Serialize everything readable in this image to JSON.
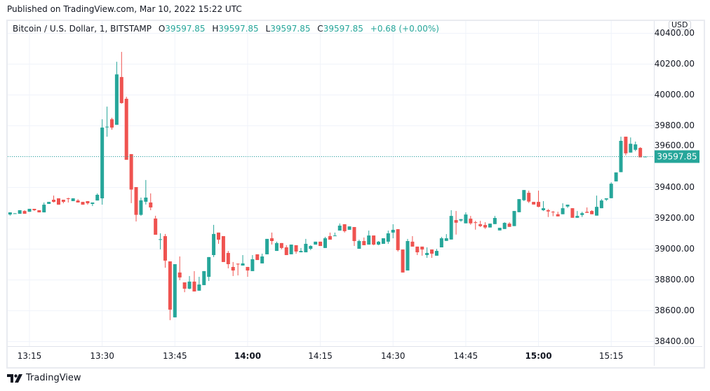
{
  "header": {
    "published": "Published on TradingView.com, Mar 10, 2022 15:22 UTC"
  },
  "legend": {
    "symbol": "Bitcoin / U.S. Dollar, 1, BITSTAMP",
    "open_label": "O",
    "open": "39597.85",
    "high_label": "H",
    "high": "39597.85",
    "low_label": "L",
    "low": "39597.85",
    "close_label": "C",
    "close": "39597.85",
    "change": "+0.68 (+0.00%)"
  },
  "currency_button": "USD",
  "footer": {
    "brand": "TradingView"
  },
  "colors": {
    "up": "#26a69a",
    "down": "#ef5350",
    "grid": "#f0f3fa",
    "text": "#131722"
  },
  "chart_data": {
    "type": "candlestick",
    "interval": "1 minute",
    "grid": true,
    "y_ticks": [
      "40400.00",
      "40200.00",
      "40000.00",
      "39800.00",
      "39600.00",
      "39400.00",
      "39200.00",
      "39000.00",
      "38800.00",
      "38600.00",
      "38400.00"
    ],
    "x_ticks": [
      {
        "label": "13:15",
        "bold": false
      },
      {
        "label": "13:30",
        "bold": false
      },
      {
        "label": "13:45",
        "bold": false
      },
      {
        "label": "14:00",
        "bold": true
      },
      {
        "label": "14:15",
        "bold": false
      },
      {
        "label": "14:30",
        "bold": false
      },
      {
        "label": "14:45",
        "bold": false
      },
      {
        "label": "15:00",
        "bold": true
      },
      {
        "label": "15:15",
        "bold": false
      }
    ],
    "last_price": "39597.85",
    "ohlc": [
      [
        39222,
        39236,
        39215,
        39236
      ],
      [
        39230,
        39231,
        39229,
        39230
      ],
      [
        39227,
        39250,
        39227,
        39250
      ],
      [
        39245,
        39250,
        39227,
        39227
      ],
      [
        39240,
        39259,
        39240,
        39259
      ],
      [
        39259,
        39259,
        39245,
        39250
      ],
      [
        39250,
        39250,
        39236,
        39236
      ],
      [
        39236,
        39300,
        39236,
        39286
      ],
      [
        39291,
        39304,
        39291,
        39304
      ],
      [
        39318,
        39345,
        39300,
        39304
      ],
      [
        39327,
        39327,
        39286,
        39286
      ],
      [
        39318,
        39318,
        39295,
        39304
      ],
      [
        39327,
        39331,
        39300,
        39325
      ],
      [
        39309,
        39327,
        39309,
        39327
      ],
      [
        39313,
        39322,
        39300,
        39300
      ],
      [
        39304,
        39304,
        39286,
        39286
      ],
      [
        39309,
        39309,
        39286,
        39295
      ],
      [
        39291,
        39300,
        39277,
        39300
      ],
      [
        39313,
        39359,
        39313,
        39350
      ],
      [
        39327,
        39840,
        39286,
        39786
      ],
      [
        39791,
        39922,
        39727,
        39792
      ],
      [
        39840,
        39850,
        39772,
        39786
      ],
      [
        39804,
        40213,
        39804,
        40131
      ],
      [
        40114,
        40277,
        39941,
        39945
      ],
      [
        39973,
        39986,
        39577,
        39577
      ],
      [
        39614,
        39614,
        39296,
        39384
      ],
      [
        39400,
        39400,
        39177,
        39220
      ],
      [
        39220,
        39332,
        39214,
        39314
      ],
      [
        39305,
        39446,
        39287,
        39332
      ],
      [
        39300,
        39359,
        39250,
        39268
      ],
      [
        39196,
        39214,
        39091,
        39091
      ],
      [
        39061,
        39100,
        38996,
        39062
      ],
      [
        39082,
        39096,
        38877,
        38923
      ],
      [
        38918,
        38918,
        38537,
        38605
      ],
      [
        38555,
        38900,
        38555,
        38900
      ],
      [
        38846,
        38950,
        38796,
        38814
      ],
      [
        38782,
        38782,
        38718,
        38741
      ],
      [
        38741,
        38823,
        38737,
        38787
      ],
      [
        38787,
        38855,
        38723,
        38723
      ],
      [
        38728,
        38818,
        38728,
        38768
      ],
      [
        38764,
        38855,
        38764,
        38855
      ],
      [
        38818,
        38946,
        38791,
        38946
      ],
      [
        38959,
        39155,
        38946,
        39096
      ],
      [
        39105,
        39105,
        39032,
        39059
      ],
      [
        39082,
        39082,
        38914,
        38914
      ],
      [
        38973,
        38986,
        38873,
        38900
      ],
      [
        38882,
        38914,
        38823,
        38859
      ],
      [
        38903,
        38905,
        38827,
        38901
      ],
      [
        38891,
        38959,
        38891,
        38905
      ],
      [
        38882,
        38882,
        38818,
        38859
      ],
      [
        38855,
        38959,
        38855,
        38932
      ],
      [
        38964,
        38964,
        38927,
        38927
      ],
      [
        38905,
        38968,
        38905,
        38950
      ],
      [
        38964,
        39064,
        38964,
        39064
      ],
      [
        39068,
        39105,
        39027,
        39050
      ],
      [
        38986,
        39046,
        38986,
        39037
      ],
      [
        39037,
        39037,
        38996,
        39005
      ],
      [
        39009,
        39023,
        38959,
        38959
      ],
      [
        38964,
        39027,
        38964,
        39027
      ],
      [
        39023,
        39023,
        38968,
        38982
      ],
      [
        38977,
        39005,
        38977,
        38986
      ],
      [
        38977,
        39064,
        38977,
        39032
      ],
      [
        39000,
        39023,
        38991,
        39018
      ],
      [
        39027,
        39046,
        39027,
        39046
      ],
      [
        39046,
        39046,
        39018,
        39018
      ],
      [
        39005,
        39077,
        39005,
        39068
      ],
      [
        39082,
        39105,
        39059,
        39059
      ],
      [
        39085,
        39105,
        39085,
        39086
      ],
      [
        39118,
        39164,
        39118,
        39150
      ],
      [
        39159,
        39159,
        39105,
        39114
      ],
      [
        39123,
        39145,
        39123,
        39145
      ],
      [
        39141,
        39141,
        39018,
        39050
      ],
      [
        39000,
        39059,
        39000,
        39050
      ],
      [
        39050,
        39073,
        39023,
        39023
      ],
      [
        39027,
        39118,
        39027,
        39086
      ],
      [
        39086,
        39086,
        39023,
        39027
      ],
      [
        39027,
        39050,
        39023,
        39046
      ],
      [
        39032,
        39068,
        39032,
        39068
      ],
      [
        39046,
        39118,
        39032,
        39100
      ],
      [
        39105,
        39159,
        39068,
        39123
      ],
      [
        39127,
        39127,
        38982,
        38991
      ],
      [
        38995,
        38995,
        38846,
        38846
      ],
      [
        38859,
        39064,
        38859,
        39050
      ],
      [
        39046,
        39082,
        39014,
        39014
      ],
      [
        39014,
        39014,
        38959,
        38977
      ],
      [
        39014,
        39014,
        38955,
        38995
      ],
      [
        38959,
        39009,
        38941,
        38973
      ],
      [
        38995,
        38995,
        38941,
        38968
      ],
      [
        38955,
        38999,
        38955,
        38986
      ],
      [
        39009,
        39077,
        39009,
        39068
      ],
      [
        39051,
        39095,
        39051,
        39068
      ],
      [
        39060,
        39250,
        39060,
        39213
      ],
      [
        39186,
        39245,
        39092,
        39169
      ],
      [
        39183,
        39192,
        39175,
        39192
      ],
      [
        39165,
        39236,
        39165,
        39222
      ],
      [
        39195,
        39213,
        39156,
        39165
      ],
      [
        39172,
        39181,
        39124,
        39170
      ],
      [
        39159,
        39181,
        39141,
        39147
      ],
      [
        39154,
        39172,
        39129,
        39138
      ],
      [
        39138,
        39163,
        39138,
        39163
      ],
      [
        39160,
        39213,
        39160,
        39200
      ],
      [
        39119,
        39136,
        39119,
        39136
      ],
      [
        39128,
        39172,
        39128,
        39168
      ],
      [
        39163,
        39172,
        39142,
        39142
      ],
      [
        39147,
        39245,
        39147,
        39245
      ],
      [
        39237,
        39322,
        39237,
        39322
      ],
      [
        39315,
        39381,
        39309,
        39381
      ],
      [
        39363,
        39377,
        39297,
        39306
      ],
      [
        39304,
        39304,
        39287,
        39287
      ],
      [
        39304,
        39377,
        39269,
        39272
      ],
      [
        39250,
        39309,
        39245,
        39263
      ],
      [
        39250,
        39258,
        39206,
        39242
      ],
      [
        39240,
        39245,
        39211,
        39237
      ],
      [
        39224,
        39240,
        39210,
        39210
      ],
      [
        39224,
        39295,
        39224,
        39263
      ],
      [
        39274,
        39286,
        39265,
        39286
      ],
      [
        39263,
        39263,
        39201,
        39201
      ],
      [
        39201,
        39245,
        39201,
        39213
      ],
      [
        39219,
        39240,
        39206,
        39231
      ],
      [
        39240,
        39268,
        39233,
        39233
      ],
      [
        39245,
        39250,
        39224,
        39224
      ],
      [
        39215,
        39345,
        39215,
        39272
      ],
      [
        39263,
        39322,
        39263,
        39313
      ],
      [
        39319,
        39327,
        39310,
        39327
      ],
      [
        39328,
        39431,
        39328,
        39422
      ],
      [
        39437,
        39495,
        39437,
        39495
      ],
      [
        39497,
        39727,
        39497,
        39700
      ],
      [
        39727,
        39727,
        39606,
        39619
      ],
      [
        39624,
        39722,
        39624,
        39681
      ],
      [
        39642,
        39695,
        39633,
        39677
      ],
      [
        39654,
        39659,
        39593,
        39593
      ],
      [
        39597.85,
        39597.85,
        39597.85,
        39597.85
      ]
    ]
  }
}
